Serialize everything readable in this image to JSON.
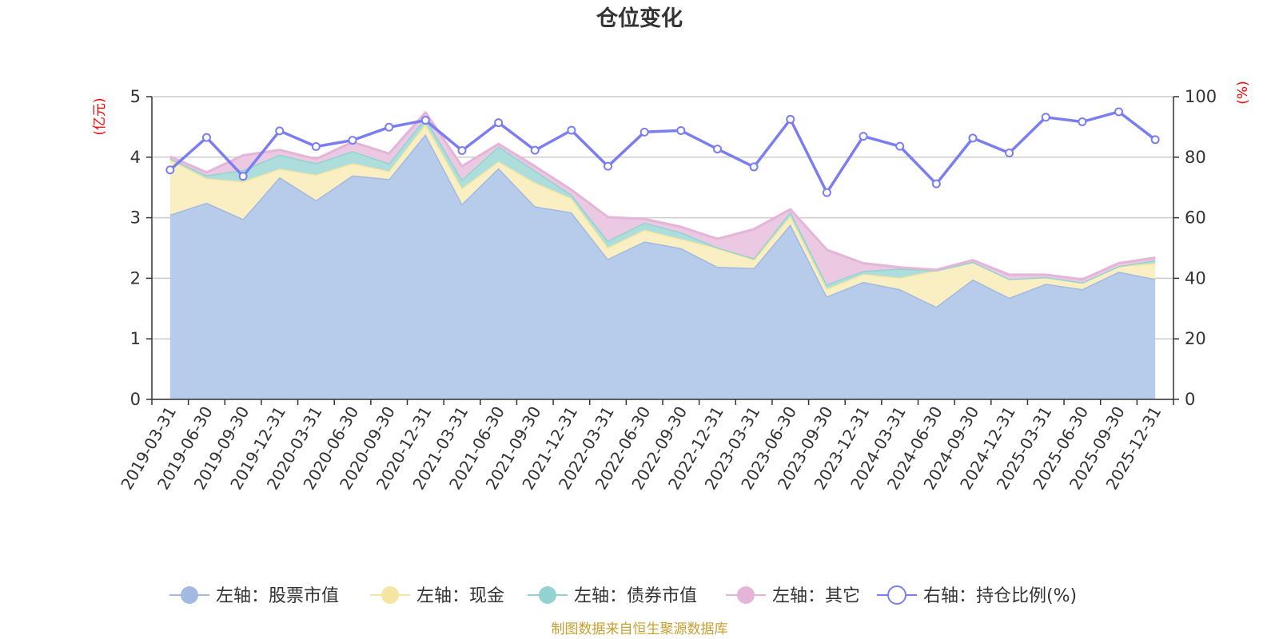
{
  "chart_data": {
    "type": "area",
    "title": "仓位变化",
    "left_unit": "(亿元)",
    "right_unit": "(%)",
    "source": "制图数据来自恒生聚源数据库",
    "categories": [
      "2019-03-31",
      "2019-06-30",
      "2019-09-30",
      "2019-12-31",
      "2020-03-31",
      "2020-06-30",
      "2020-09-30",
      "2020-12-31",
      "2021-03-31",
      "2021-06-30",
      "2021-09-30",
      "2021-12-31",
      "2022-03-31",
      "2022-06-30",
      "2022-09-30",
      "2022-12-31",
      "2023-03-31",
      "2023-06-30",
      "2023-09-30",
      "2023-12-31",
      "2024-03-31",
      "2024-06-30",
      "2024-09-30",
      "2024-12-31",
      "2025-03-31",
      "2025-06-30",
      "2025-09-30",
      "2025-12-31"
    ],
    "ylim_left": [
      0,
      5
    ],
    "yticks_left": [
      "0",
      "1",
      "2",
      "3",
      "4",
      "5"
    ],
    "ylim_right": [
      0,
      100
    ],
    "yticks_right": [
      "0",
      "20",
      "40",
      "60",
      "80",
      "100"
    ],
    "stacked_series": [
      {
        "name": "左轴：股票市值",
        "color": "#a2b9e2",
        "fill": "#b7cbea",
        "values": [
          3.05,
          3.25,
          2.98,
          3.67,
          3.29,
          3.7,
          3.64,
          4.38,
          3.23,
          3.82,
          3.19,
          3.09,
          2.32,
          2.61,
          2.5,
          2.19,
          2.17,
          2.89,
          1.7,
          1.94,
          1.82,
          1.53,
          1.98,
          1.68,
          1.91,
          1.82,
          2.11,
          1.99
        ]
      },
      {
        "name": "左轴：现金",
        "color": "#f5e5a2",
        "fill": "#faeec3",
        "values": [
          0.91,
          0.4,
          0.62,
          0.14,
          0.42,
          0.2,
          0.13,
          0.17,
          0.26,
          0.11,
          0.39,
          0.23,
          0.19,
          0.19,
          0.15,
          0.31,
          0.14,
          0.14,
          0.13,
          0.13,
          0.19,
          0.6,
          0.29,
          0.31,
          0.11,
          0.11,
          0.09,
          0.26
        ]
      },
      {
        "name": "左轴：债券市值",
        "color": "#92d3d1",
        "fill": "#aededc",
        "values": [
          0.02,
          0.05,
          0.19,
          0.23,
          0.19,
          0.2,
          0.13,
          0.1,
          0.14,
          0.25,
          0.2,
          0.06,
          0.11,
          0.12,
          0.11,
          0.01,
          0.02,
          0.07,
          0.07,
          0.05,
          0.15,
          0.0,
          0.0,
          0.0,
          0.0,
          0.0,
          0.0,
          0.05
        ]
      },
      {
        "name": "左轴：其它",
        "color": "#e4b5d8",
        "fill": "#ebc9e2",
        "values": [
          0.03,
          0.05,
          0.24,
          0.08,
          0.07,
          0.15,
          0.16,
          0.09,
          0.22,
          0.04,
          0.07,
          0.08,
          0.39,
          0.06,
          0.09,
          0.14,
          0.48,
          0.04,
          0.57,
          0.13,
          0.02,
          0.01,
          0.03,
          0.07,
          0.04,
          0.05,
          0.05,
          0.04
        ]
      }
    ],
    "line_series": {
      "name": "右轴：持仓比例(%)",
      "color": "#7b7ef0",
      "values": [
        75.8,
        86.5,
        73.7,
        88.7,
        83.5,
        85.6,
        89.9,
        92.2,
        82.2,
        91.4,
        82.3,
        88.9,
        77.0,
        88.3,
        88.8,
        82.7,
        76.8,
        92.5,
        68.3,
        86.9,
        83.6,
        71.2,
        86.3,
        81.4,
        93.2,
        91.7,
        95.0,
        85.8
      ]
    }
  }
}
